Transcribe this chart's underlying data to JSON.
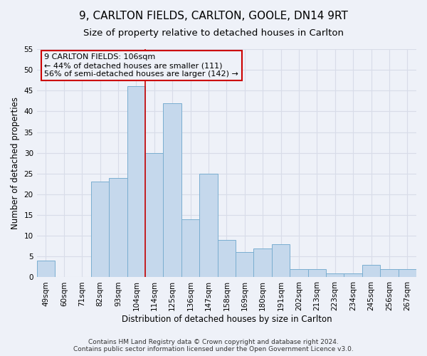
{
  "title": "9, CARLTON FIELDS, CARLTON, GOOLE, DN14 9RT",
  "subtitle": "Size of property relative to detached houses in Carlton",
  "xlabel": "Distribution of detached houses by size in Carlton",
  "ylabel": "Number of detached properties",
  "bar_labels": [
    "49sqm",
    "60sqm",
    "71sqm",
    "82sqm",
    "93sqm",
    "104sqm",
    "114sqm",
    "125sqm",
    "136sqm",
    "147sqm",
    "158sqm",
    "169sqm",
    "180sqm",
    "191sqm",
    "202sqm",
    "213sqm",
    "223sqm",
    "234sqm",
    "245sqm",
    "256sqm",
    "267sqm"
  ],
  "bar_values": [
    4,
    0,
    0,
    23,
    24,
    46,
    30,
    42,
    14,
    25,
    9,
    6,
    7,
    8,
    2,
    2,
    1,
    1,
    3,
    2,
    2
  ],
  "bar_color": "#c5d8ec",
  "bar_edge_color": "#7aaed0",
  "red_line_x": 5.5,
  "annotation_text": "9 CARLTON FIELDS: 106sqm\n← 44% of detached houses are smaller (111)\n56% of semi-detached houses are larger (142) →",
  "annotation_box_edgecolor": "#cc0000",
  "ylim": [
    0,
    55
  ],
  "yticks": [
    0,
    5,
    10,
    15,
    20,
    25,
    30,
    35,
    40,
    45,
    50,
    55
  ],
  "footer_line1": "Contains HM Land Registry data © Crown copyright and database right 2024.",
  "footer_line2": "Contains public sector information licensed under the Open Government Licence v3.0.",
  "background_color": "#eef1f8",
  "grid_color": "#d8dce8",
  "title_fontsize": 11,
  "subtitle_fontsize": 9.5,
  "axis_label_fontsize": 8.5,
  "tick_fontsize": 7.5,
  "footer_fontsize": 6.5,
  "annotation_fontsize": 8
}
